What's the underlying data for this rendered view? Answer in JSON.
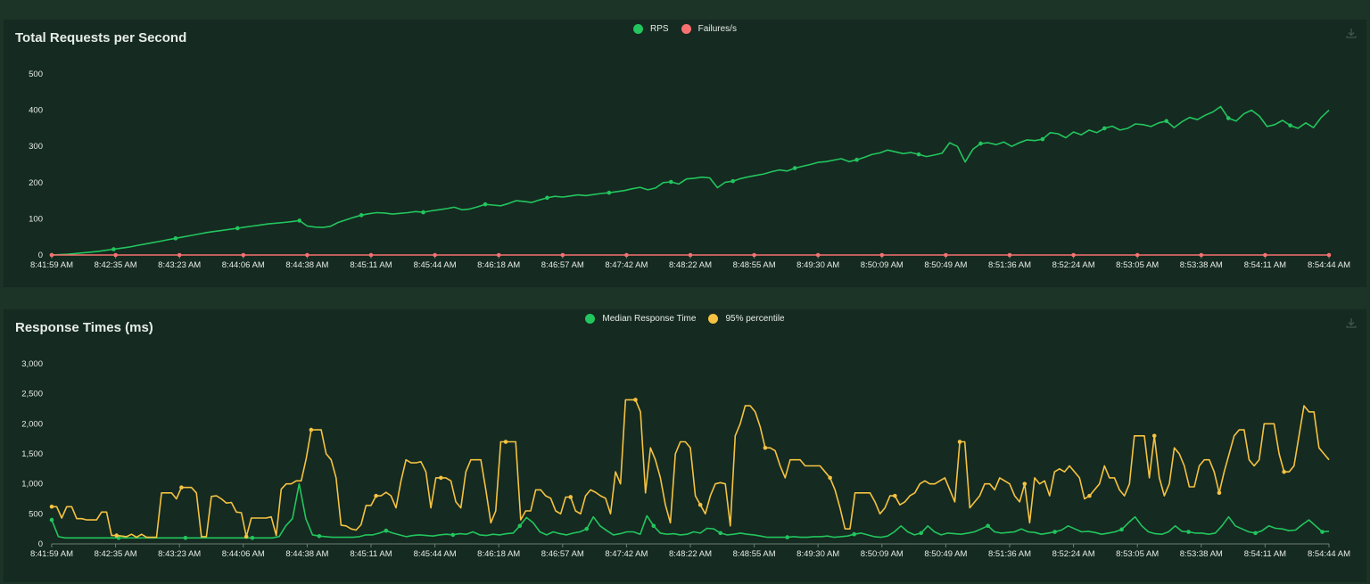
{
  "colors": {
    "background": "#1c3327",
    "panel": "#152a20",
    "rps": "#22c55e",
    "failures": "#f87171",
    "median": "#22c55e",
    "p95": "#f5c242"
  },
  "icons": {
    "download": "download-icon"
  },
  "chart_data": [
    {
      "type": "line",
      "title": "Total Requests per Second",
      "legend_position": "top-center",
      "grid": false,
      "xlabel": "",
      "ylabel": "",
      "ylim": [
        0,
        500
      ],
      "y_ticks": [
        "0",
        "100",
        "200",
        "300",
        "400",
        "500"
      ],
      "x_ticks": [
        "8:41:59 AM",
        "8:42:35 AM",
        "8:43:23 AM",
        "8:44:06 AM",
        "8:44:38 AM",
        "8:45:11 AM",
        "8:45:44 AM",
        "8:46:18 AM",
        "8:46:57 AM",
        "8:47:42 AM",
        "8:48:22 AM",
        "8:48:55 AM",
        "8:49:30 AM",
        "8:50:09 AM",
        "8:50:49 AM",
        "8:51:36 AM",
        "8:52:24 AM",
        "8:53:05 AM",
        "8:53:38 AM",
        "8:54:11 AM",
        "8:54:44 AM"
      ],
      "series": [
        {
          "name": "RPS",
          "values": [
            0,
            1,
            2,
            4,
            6,
            8,
            10,
            13,
            16,
            19,
            22,
            26,
            30,
            34,
            38,
            42,
            46,
            50,
            54,
            58,
            62,
            65,
            68,
            71,
            74,
            77,
            80,
            83,
            86,
            88,
            90,
            92,
            95,
            80,
            77,
            76,
            79,
            90,
            97,
            104,
            110,
            114,
            117,
            116,
            113,
            115,
            117,
            120,
            118,
            122,
            125,
            128,
            132,
            125,
            127,
            133,
            140,
            138,
            136,
            142,
            150,
            148,
            145,
            152,
            158,
            162,
            160,
            163,
            166,
            164,
            167,
            170,
            172,
            175,
            178,
            183,
            187,
            180,
            185,
            200,
            202,
            196,
            210,
            212,
            215,
            213,
            186,
            201,
            204,
            211,
            216,
            220,
            224,
            230,
            235,
            232,
            240,
            245,
            250,
            256,
            258,
            262,
            266,
            258,
            263,
            270,
            278,
            282,
            290,
            285,
            280,
            283,
            278,
            272,
            276,
            281,
            310,
            300,
            257,
            292,
            308,
            310,
            305,
            312,
            300,
            310,
            318,
            316,
            320,
            338,
            335,
            324,
            340,
            332,
            345,
            338,
            350,
            356,
            345,
            350,
            362,
            360,
            355,
            365,
            370,
            352,
            368,
            380,
            374,
            386,
            395,
            410,
            378,
            370,
            390,
            400,
            384,
            355,
            360,
            372,
            358,
            350,
            365,
            352,
            380,
            400
          ]
        },
        {
          "name": "Failures/s",
          "values": [
            0,
            0,
            0,
            0,
            0,
            0,
            0,
            0,
            0,
            0,
            0,
            0,
            0,
            0,
            0,
            0,
            0,
            0,
            0,
            0,
            0
          ]
        }
      ]
    },
    {
      "type": "line",
      "title": "Response Times (ms)",
      "legend_position": "top-center",
      "grid": false,
      "xlabel": "",
      "ylabel": "",
      "ylim": [
        0,
        3000
      ],
      "y_ticks": [
        "0",
        "500",
        "1,000",
        "1,500",
        "2,000",
        "2,500",
        "3,000"
      ],
      "x_ticks": [
        "8:41:59 AM",
        "8:42:35 AM",
        "8:43:23 AM",
        "8:44:06 AM",
        "8:44:38 AM",
        "8:45:11 AM",
        "8:45:44 AM",
        "8:46:18 AM",
        "8:46:57 AM",
        "8:47:42 AM",
        "8:48:22 AM",
        "8:48:55 AM",
        "8:49:30 AM",
        "8:50:09 AM",
        "8:50:49 AM",
        "8:51:36 AM",
        "8:52:24 AM",
        "8:53:05 AM",
        "8:53:38 AM",
        "8:54:11 AM",
        "8:54:44 AM"
      ],
      "series": [
        {
          "name": "Median Response Time",
          "values": [
            400,
            120,
            100,
            100,
            100,
            100,
            100,
            100,
            100,
            100,
            100,
            100,
            100,
            100,
            100,
            100,
            100,
            100,
            100,
            100,
            100,
            100,
            100,
            100,
            100,
            100,
            100,
            100,
            100,
            100,
            100,
            100,
            100,
            100,
            120,
            300,
            420,
            1000,
            420,
            150,
            130,
            120,
            110,
            110,
            110,
            110,
            120,
            150,
            150,
            180,
            220,
            180,
            150,
            120,
            140,
            150,
            140,
            130,
            150,
            160,
            150,
            170,
            160,
            200,
            150,
            140,
            160,
            150,
            170,
            180,
            300,
            440,
            350,
            200,
            150,
            200,
            170,
            150,
            180,
            200,
            250,
            450,
            300,
            220,
            150,
            170,
            200,
            200,
            160,
            470,
            300,
            180,
            160,
            170,
            150,
            160,
            200,
            180,
            260,
            250,
            180,
            150,
            160,
            180,
            160,
            150,
            130,
            110,
            110,
            110,
            110,
            120,
            110,
            110,
            120,
            120,
            130,
            110,
            120,
            130,
            160,
            180,
            150,
            120,
            110,
            130,
            200,
            300,
            200,
            150,
            180,
            300,
            200,
            150,
            180,
            170,
            160,
            180,
            200,
            250,
            300,
            200,
            180,
            190,
            200,
            250,
            200,
            190,
            160,
            180,
            200,
            230,
            300,
            250,
            200,
            210,
            190,
            160,
            180,
            200,
            240,
            350,
            450,
            300,
            200,
            170,
            160,
            200,
            300,
            210,
            200,
            180,
            180,
            160,
            180,
            300,
            450,
            300,
            250,
            200,
            180,
            220,
            300,
            260,
            250,
            220,
            230,
            320,
            400,
            300,
            200,
            210
          ]
        },
        {
          "name": "95% percentile",
          "values": [
            620,
            620,
            430,
            620,
            620,
            420,
            420,
            400,
            400,
            400,
            530,
            530,
            140,
            140,
            130,
            120,
            160,
            110,
            160,
            110,
            110,
            110,
            850,
            850,
            850,
            750,
            940,
            940,
            940,
            850,
            120,
            120,
            790,
            800,
            750,
            680,
            690,
            530,
            520,
            120,
            430,
            430,
            430,
            430,
            450,
            140,
            910,
            1000,
            1000,
            1050,
            1050,
            1420,
            1900,
            1900,
            1900,
            1500,
            1400,
            1100,
            310,
            300,
            250,
            230,
            320,
            640,
            640,
            800,
            800,
            860,
            800,
            600,
            1050,
            1400,
            1350,
            1350,
            1370,
            1200,
            600,
            1100,
            1100,
            1100,
            1050,
            700,
            600,
            1200,
            1400,
            1400,
            1400,
            900,
            350,
            550,
            1700,
            1700,
            1700,
            1700,
            400,
            550,
            550,
            900,
            900,
            800,
            760,
            550,
            500,
            780,
            780,
            550,
            500,
            800,
            900,
            860,
            800,
            760,
            500,
            1200,
            1000,
            2400,
            2400,
            2400,
            2200,
            850,
            1600,
            1400,
            1100,
            650,
            350,
            1500,
            1700,
            1700,
            1600,
            800,
            650,
            500,
            800,
            1000,
            1020,
            1000,
            300,
            1800,
            2000,
            2300,
            2300,
            2200,
            1950,
            1600,
            1600,
            1550,
            1300,
            1100,
            1400,
            1400,
            1400,
            1300,
            1300,
            1300,
            1300,
            1200,
            1100,
            900,
            600,
            250,
            250,
            850,
            850,
            850,
            850,
            700,
            500,
            600,
            800,
            800,
            650,
            700,
            800,
            850,
            1000,
            1050,
            1000,
            1000,
            1050,
            1100,
            900,
            700,
            1700,
            1700,
            600,
            700,
            800,
            1000,
            1000,
            900,
            1100,
            1050,
            1000,
            800,
            700,
            1000,
            350,
            1100,
            1000,
            1050,
            800,
            1200,
            1250,
            1200,
            1300,
            1200,
            1100,
            750,
            800,
            900,
            1000,
            1300,
            1100,
            1100,
            900,
            800,
            1000,
            1800,
            1800,
            1800,
            1100,
            1800,
            1100,
            800,
            1000,
            1600,
            1500,
            1300,
            950,
            950,
            1300,
            1400,
            1400,
            1200,
            850,
            1200,
            1500,
            1800,
            1900,
            1900,
            1400,
            1300,
            1400,
            2000,
            2000,
            2000,
            1500,
            1200,
            1200,
            1300,
            1800,
            2300,
            2200,
            2200,
            1600,
            1500,
            1400
          ]
        }
      ]
    }
  ]
}
